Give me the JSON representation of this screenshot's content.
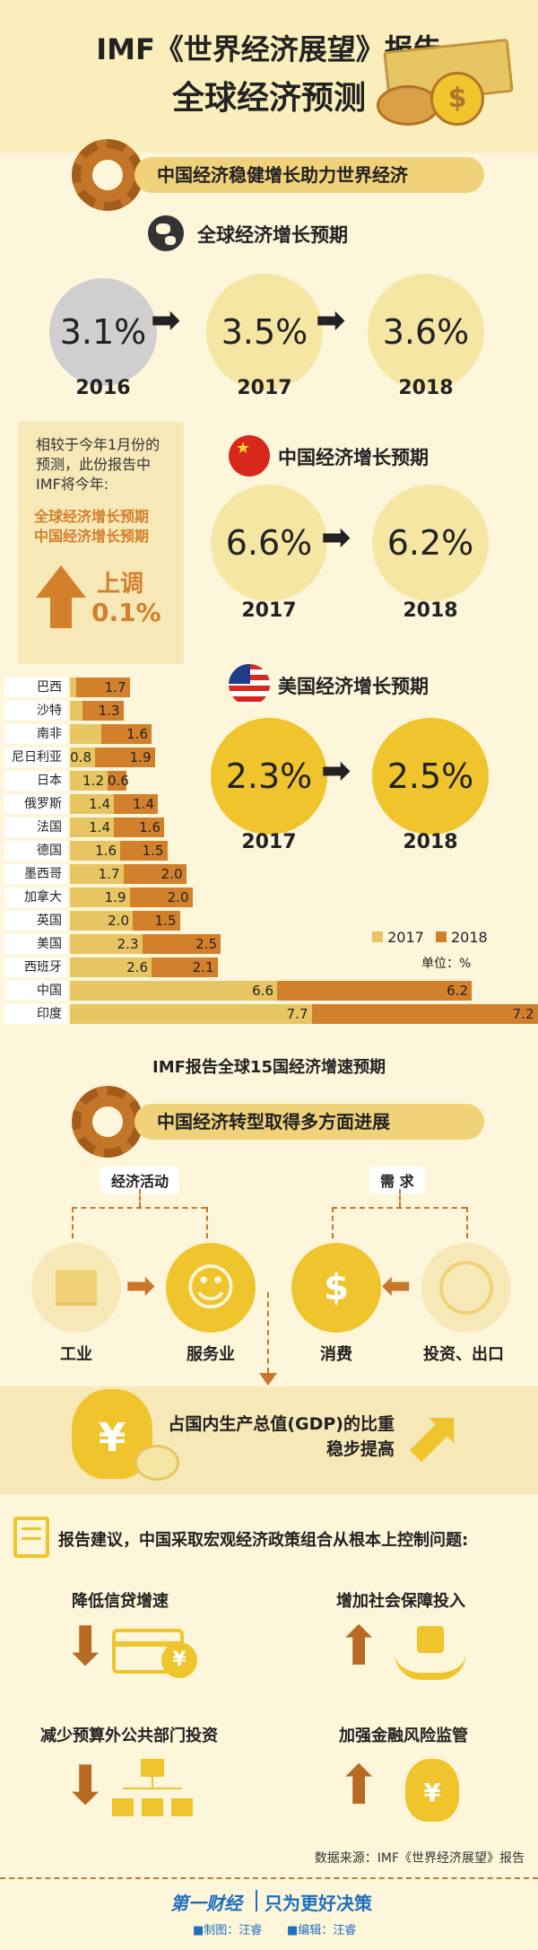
{
  "header": {
    "line1": "IMF《世界经济展望》报告",
    "line2": "全球经济预测"
  },
  "section1": {
    "title": "中国经济稳健增长助力世界经济"
  },
  "global": {
    "title": "全球经济增长预期",
    "values": [
      "3.1%",
      "3.5%",
      "3.6%"
    ],
    "years": [
      "2016",
      "2017",
      "2018"
    ]
  },
  "note": {
    "line1": "相较于今年1月份的",
    "line2": "预测，此份报告中",
    "line3": "IMF将今年:",
    "orange1": "全球经济增长预期",
    "orange2": "中国经济增长预期",
    "up_label": "上调",
    "up_value": "0.1%"
  },
  "china": {
    "title": "中国经济增长预期",
    "values": [
      "6.6%",
      "6.2%"
    ],
    "years": [
      "2017",
      "2018"
    ]
  },
  "usa": {
    "title": "美国经济增长预期",
    "values": [
      "2.3%",
      "2.5%"
    ],
    "years": [
      "2017",
      "2018"
    ]
  },
  "chart_data": {
    "type": "bar",
    "title": "IMF报告全球15国经济增速预期",
    "unit": "单位：%",
    "categories": [
      "巴西",
      "沙特",
      "南非",
      "尼日利亚",
      "日本",
      "俄罗斯",
      "法国",
      "德国",
      "墨西哥",
      "加拿大",
      "英国",
      "美国",
      "西班牙",
      "中国",
      "印度"
    ],
    "series": [
      {
        "name": "2017",
        "values": [
          0.2,
          0.4,
          1.0,
          0.8,
          1.2,
          1.4,
          1.4,
          1.6,
          1.7,
          1.9,
          2.0,
          2.3,
          2.6,
          6.6,
          7.7
        ]
      },
      {
        "name": "2018",
        "values": [
          1.7,
          1.3,
          1.6,
          1.9,
          0.6,
          1.4,
          1.6,
          1.5,
          2.0,
          2.0,
          1.5,
          2.5,
          2.1,
          6.2,
          7.2
        ]
      }
    ],
    "labels_2017": [
      "",
      "",
      "",
      "0.8",
      "1.2",
      "1.4",
      "1.4",
      "1.6",
      "1.7",
      "1.9",
      "2.0",
      "2.3",
      "2.6",
      "6.6",
      "7.7"
    ],
    "labels_2018": [
      "1.7",
      "1.3",
      "1.6",
      "1.9",
      "0.6",
      "1.4",
      "1.6",
      "1.5",
      "2.0",
      "2.0",
      "1.5",
      "2.5",
      "2.1",
      "6.2",
      "7.2"
    ],
    "colors": {
      "2017": "#e8c563",
      "2018": "#d3802c"
    },
    "legend": [
      "2017",
      "2018"
    ],
    "legend_position": "bottom-right"
  },
  "section2": {
    "title": "中国经济转型取得多方面进展"
  },
  "transform": {
    "econ_label": "经济活动",
    "demand_label": "需 求",
    "industry": "工业",
    "services": "服务业",
    "consumption": "消费",
    "invest": "投资、出口",
    "gdp_line1": "占国内生产总值(GDP)的比重",
    "gdp_line2": "稳步提高"
  },
  "advice": {
    "title": "报告建议，中国采取宏观经济政策组合从根本上控制问题:",
    "item1": "降低信贷增速",
    "item2": "增加社会保障投入",
    "item3": "减少预算外公共部门投资",
    "item4": "加强金融风险监管"
  },
  "footer": {
    "source": "数据来源：IMF《世界经济展望》报告",
    "brand": "第一财经",
    "slogan": "只为更好决策",
    "credit1": "■制图：汪睿",
    "credit2": "■编辑：汪睿"
  }
}
